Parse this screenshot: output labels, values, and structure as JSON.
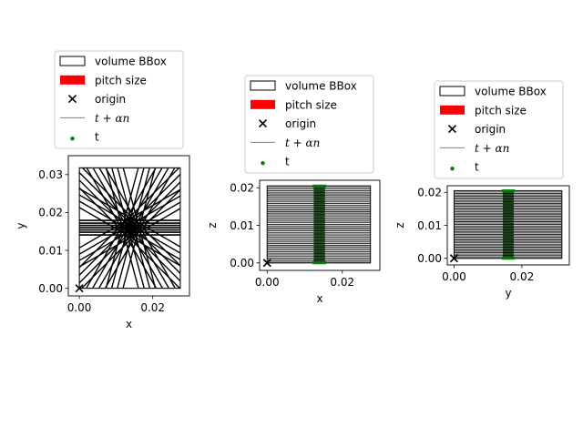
{
  "chart_data": [
    {
      "type": "scatter",
      "title": "",
      "xlabel": "x",
      "ylabel": "y",
      "xlim": [
        -0.003,
        0.03
      ],
      "ylim": [
        -0.002,
        0.035
      ],
      "xticks": [
        "0.00",
        "0.02"
      ],
      "yticks": [
        "0.00",
        "0.01",
        "0.02",
        "0.03"
      ],
      "xtick_values": [
        0.0,
        0.02
      ],
      "ytick_values": [
        0.0,
        0.01,
        0.02,
        0.03
      ],
      "bbox": {
        "x": [
          0.0,
          0.0275
        ],
        "y": [
          0.0,
          0.0318
        ]
      },
      "origin": [
        0.0,
        0.0
      ],
      "center": [
        0.014,
        0.016
      ],
      "legend": {
        "placement": "above",
        "entries": [
          {
            "label": "volume BBox",
            "kind": "box"
          },
          {
            "label": "pitch size",
            "kind": "patch",
            "color": "#ff0000"
          },
          {
            "label": "origin",
            "kind": "marker-x"
          },
          {
            "label": "t + αn",
            "kind": "line",
            "color": "#808080",
            "base": "t",
            "plus": " + ",
            "coef": "α",
            "var": "n"
          },
          {
            "label": "t",
            "kind": "dot",
            "color": "#008000"
          }
        ]
      }
    },
    {
      "type": "scatter",
      "title": "",
      "xlabel": "x",
      "ylabel": "z",
      "xlim": [
        -0.002,
        0.03
      ],
      "ylim": [
        -0.002,
        0.022
      ],
      "xticks": [
        "0.00",
        "0.02"
      ],
      "yticks": [
        "0.00",
        "0.01",
        "0.02"
      ],
      "xtick_values": [
        0.0,
        0.02
      ],
      "ytick_values": [
        0.0,
        0.01,
        0.02
      ],
      "bbox": {
        "x": [
          0.0,
          0.0275
        ],
        "y": [
          0.0,
          0.0205
        ]
      },
      "origin": [
        0.0,
        0.0
      ],
      "t_band": [
        0.0124,
        0.0154
      ],
      "legend": {
        "placement": "above",
        "entries": [
          {
            "label": "volume BBox",
            "kind": "box"
          },
          {
            "label": "pitch size",
            "kind": "patch",
            "color": "#ff0000"
          },
          {
            "label": "origin",
            "kind": "marker-x"
          },
          {
            "label": "t + αn",
            "kind": "line",
            "color": "#808080",
            "base": "t",
            "plus": " + ",
            "coef": "α",
            "var": "n"
          },
          {
            "label": "t",
            "kind": "dot",
            "color": "#008000"
          }
        ]
      }
    },
    {
      "type": "scatter",
      "title": "",
      "xlabel": "y",
      "ylabel": "z",
      "xlim": [
        -0.002,
        0.034
      ],
      "ylim": [
        -0.002,
        0.022
      ],
      "xticks": [
        "0.00",
        "0.02"
      ],
      "yticks": [
        "0.00",
        "0.01",
        "0.02"
      ],
      "xtick_values": [
        0.0,
        0.02
      ],
      "ytick_values": [
        0.0,
        0.01,
        0.02
      ],
      "bbox": {
        "x": [
          0.0,
          0.0318
        ],
        "y": [
          0.0,
          0.0205
        ]
      },
      "origin": [
        0.0,
        0.0
      ],
      "t_band": [
        0.0144,
        0.0176
      ],
      "legend": {
        "placement": "above",
        "entries": [
          {
            "label": "volume BBox",
            "kind": "box"
          },
          {
            "label": "pitch size",
            "kind": "patch",
            "color": "#ff0000"
          },
          {
            "label": "origin",
            "kind": "marker-x"
          },
          {
            "label": "t + αn",
            "kind": "line",
            "color": "#808080",
            "base": "t",
            "plus": " + ",
            "coef": "α",
            "var": "n"
          },
          {
            "label": "t",
            "kind": "dot",
            "color": "#008000"
          }
        ]
      }
    }
  ]
}
